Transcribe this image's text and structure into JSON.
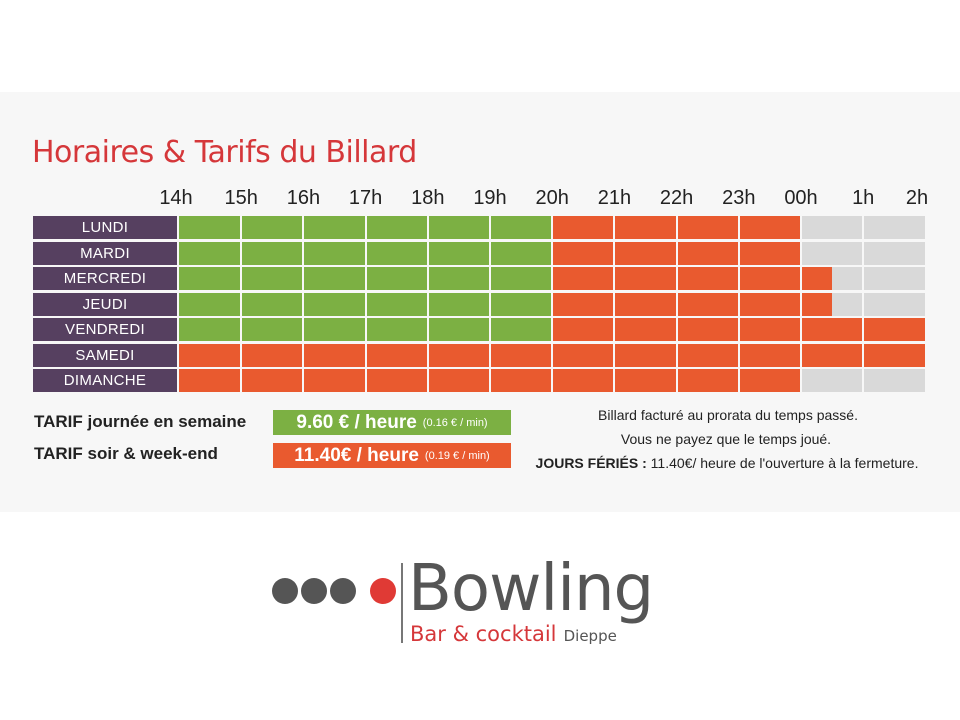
{
  "title": "Horaires & Tarifs du Billard",
  "hours": [
    "14h",
    "15h",
    "16h",
    "17h",
    "18h",
    "19h",
    "20h",
    "21h",
    "22h",
    "23h",
    "00h",
    "1h",
    "2h"
  ],
  "colors": {
    "day": "#7cb043",
    "evening": "#e95a2f",
    "closed": "#d9d9d9",
    "day_label_bg": "#564060",
    "title": "#d5373a"
  },
  "schedule": [
    {
      "day": "LUNDI",
      "green_hours": 6,
      "orange_hours": 4,
      "open_until_hours": 10
    },
    {
      "day": "MARDI",
      "green_hours": 6,
      "orange_hours": 4,
      "open_until_hours": 10
    },
    {
      "day": "MERCREDI",
      "green_hours": 6,
      "orange_hours": 4.5,
      "open_until_hours": 10.5
    },
    {
      "day": "JEUDI",
      "green_hours": 6,
      "orange_hours": 4.5,
      "open_until_hours": 10.5
    },
    {
      "day": "VENDREDI",
      "green_hours": 6,
      "orange_hours": 6,
      "open_until_hours": 12
    },
    {
      "day": "SAMEDI",
      "green_hours": 0,
      "orange_hours": 12,
      "open_until_hours": 12
    },
    {
      "day": "DIMANCHE",
      "green_hours": 0,
      "orange_hours": 10,
      "open_until_hours": 10
    }
  ],
  "tarifs": {
    "day_label": "TARIF journée en semaine",
    "day_price": "9.60 € / heure",
    "day_per_min": "(0.16 € / min)",
    "evening_label": "TARIF soir & week-end",
    "evening_price": "11.40€ / heure",
    "evening_per_min": "(0.19 € / min)"
  },
  "notes": {
    "line1": "Billard facturé au prorata du temps passé.",
    "line2": "Vous ne payez que le temps joué.",
    "holiday_bold": "JOURS FÉRIÉS :",
    "holiday_text": " 11.40€/ heure de l'ouverture à la fermeture."
  },
  "logo": {
    "word": "Bowling",
    "sub_a": "Bar & cocktail",
    "sub_b": "Dieppe"
  }
}
